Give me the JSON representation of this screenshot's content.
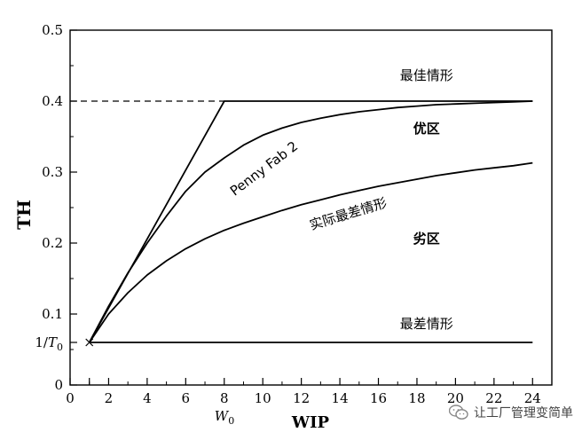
{
  "chart_data": {
    "type": "line",
    "xlabel": "WIP",
    "ylabel": "TH",
    "xlim": [
      0,
      25
    ],
    "ylim": [
      0,
      0.5
    ],
    "x_ticks": [
      "0",
      "2",
      "4",
      "6",
      "8",
      "10",
      "12",
      "14",
      "16",
      "18",
      "20",
      "22",
      "24"
    ],
    "y_ticks": [
      "0",
      "0.1",
      "0.2",
      "0.3",
      "0.4",
      "0.5"
    ],
    "extra_tick_labels": {
      "x": {
        "value": 1,
        "label": "W0"
      },
      "y": {
        "value": 0.06,
        "label": "1/T0"
      }
    },
    "series": [
      {
        "name": "最佳情形",
        "style": "solid",
        "points": [
          [
            1,
            0.06
          ],
          [
            8,
            0.4
          ],
          [
            24,
            0.4
          ]
        ]
      },
      {
        "name": "",
        "style": "dashed",
        "points": [
          [
            0,
            0.4
          ],
          [
            8,
            0.4
          ]
        ]
      },
      {
        "name": "Penny Fab 2",
        "style": "solid",
        "points": [
          [
            1,
            0.06
          ],
          [
            2,
            0.111
          ],
          [
            3,
            0.158
          ],
          [
            4,
            0.2
          ],
          [
            5,
            0.238
          ],
          [
            6,
            0.273
          ],
          [
            7,
            0.3
          ],
          [
            8,
            0.32
          ],
          [
            9,
            0.338
          ],
          [
            10,
            0.352
          ],
          [
            11,
            0.362
          ],
          [
            12,
            0.37
          ],
          [
            13,
            0.376
          ],
          [
            14,
            0.381
          ],
          [
            15,
            0.385
          ],
          [
            16,
            0.388
          ],
          [
            17,
            0.391
          ],
          [
            18,
            0.393
          ],
          [
            19,
            0.395
          ],
          [
            20,
            0.396
          ],
          [
            21,
            0.397
          ],
          [
            22,
            0.398
          ],
          [
            23,
            0.399
          ],
          [
            24,
            0.4
          ]
        ]
      },
      {
        "name": "实际最差情形",
        "style": "solid",
        "points": [
          [
            1,
            0.06
          ],
          [
            2,
            0.1
          ],
          [
            3,
            0.13
          ],
          [
            4,
            0.155
          ],
          [
            5,
            0.175
          ],
          [
            6,
            0.192
          ],
          [
            7,
            0.206
          ],
          [
            8,
            0.218
          ],
          [
            9,
            0.228
          ],
          [
            10,
            0.237
          ],
          [
            11,
            0.246
          ],
          [
            12,
            0.254
          ],
          [
            13,
            0.261
          ],
          [
            14,
            0.268
          ],
          [
            15,
            0.274
          ],
          [
            16,
            0.28
          ],
          [
            17,
            0.285
          ],
          [
            18,
            0.29
          ],
          [
            19,
            0.295
          ],
          [
            20,
            0.299
          ],
          [
            21,
            0.303
          ],
          [
            22,
            0.306
          ],
          [
            23,
            0.309
          ],
          [
            24,
            0.313
          ]
        ]
      },
      {
        "name": "最差情形",
        "style": "solid",
        "points": [
          [
            1,
            0.06
          ],
          [
            24,
            0.06
          ]
        ]
      }
    ],
    "annotations": [
      {
        "text": "最佳情形",
        "x": 18.5,
        "y": 0.43,
        "rotate": 0,
        "weight": "normal"
      },
      {
        "text": "优区",
        "x": 18.5,
        "y": 0.355,
        "rotate": 0,
        "weight": "bold"
      },
      {
        "text": "Penny Fab 2",
        "x": 10.2,
        "y": 0.3,
        "rotate": -37,
        "weight": "normal"
      },
      {
        "text": "实际最差情形",
        "x": 14.5,
        "y": 0.235,
        "rotate": -17,
        "weight": "normal"
      },
      {
        "text": "劣区",
        "x": 18.5,
        "y": 0.2,
        "rotate": 0,
        "weight": "bold"
      },
      {
        "text": "最差情形",
        "x": 18.5,
        "y": 0.08,
        "rotate": 0,
        "weight": "normal"
      }
    ]
  },
  "watermark": {
    "text": "让工厂管理变简单",
    "icon": "wechat-icon"
  }
}
